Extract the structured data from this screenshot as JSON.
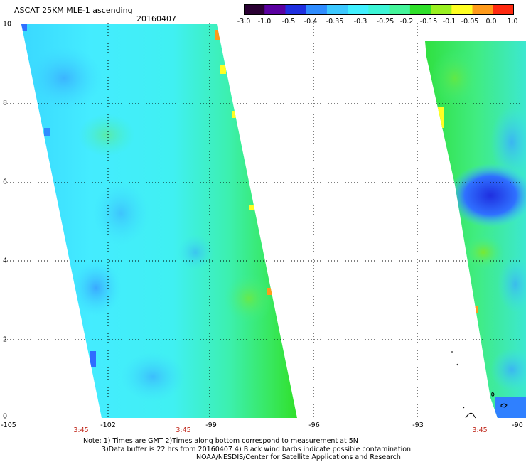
{
  "header": {
    "title": "ASCAT 25KM MLE-1 ascending",
    "date": "20160407"
  },
  "colorbar": {
    "ticks": [
      "-3.0",
      "-1.0",
      "-0.5",
      "-0.4",
      "-0.35",
      "-0.3",
      "-0.25",
      "-0.2",
      "-0.15",
      "-0.1",
      "-0.05",
      "0.0",
      "1.0"
    ],
    "colors": [
      "#2a0033",
      "#5a00a0",
      "#1f2fe0",
      "#2f8cff",
      "#3cc8ff",
      "#40f0ff",
      "#3cf5d6",
      "#44f59a",
      "#30e02a",
      "#9af020",
      "#ffff22",
      "#ff9a1a",
      "#ff2a10"
    ]
  },
  "axes": {
    "x_ticks": [
      "-105",
      "-102",
      "-99",
      "-96",
      "-93",
      "-90"
    ],
    "y_ticks": [
      "0",
      "2",
      "4",
      "6",
      "8",
      "10"
    ],
    "lon_range": [
      -105,
      -90
    ],
    "lat_range": [
      0,
      10
    ],
    "time_labels": [
      "3:45",
      "3:45",
      "3:45"
    ],
    "time_lons": [
      -102.6,
      -99.8,
      -90.8
    ]
  },
  "notes": {
    "line1": "Note: 1) Times are GMT 2)Times along bottom correspond to measurement at 5N",
    "line2": "3)Data buffer is 22 hrs from 20160407 4) Black wind barbs indicate possible contamination",
    "line3": "NOAA/NESDIS/Center for Satellite Applications and Research"
  }
}
